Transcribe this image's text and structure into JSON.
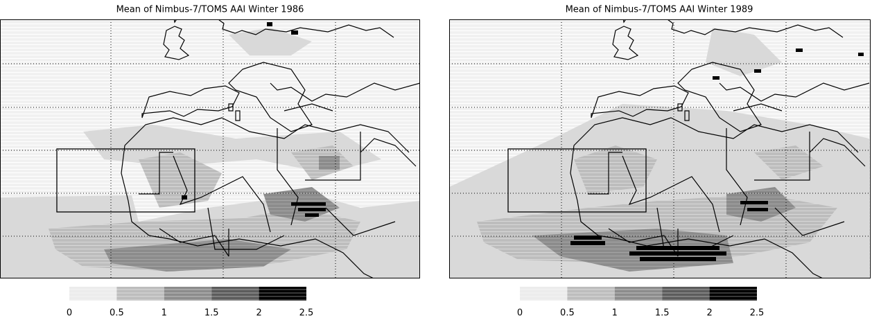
{
  "panels": [
    {
      "title": "Mean of Nimbus-7/TOMS AAI Winter 1986",
      "colorbar": {
        "ticks": [
          0,
          0.5,
          1,
          1.5,
          2,
          2.5
        ],
        "colors": [
          "#ececec",
          "#bdbdbd",
          "#8c8c8c",
          "#5c5c5c",
          "#000000"
        ]
      }
    },
    {
      "title": "Mean of Nimbus-7/TOMS AAI Winter 1989",
      "colorbar": {
        "ticks": [
          0,
          0.5,
          1,
          1.5,
          2,
          2.5
        ],
        "colors": [
          "#ececec",
          "#bdbdbd",
          "#8c8c8c",
          "#5c5c5c",
          "#000000"
        ]
      }
    }
  ]
}
